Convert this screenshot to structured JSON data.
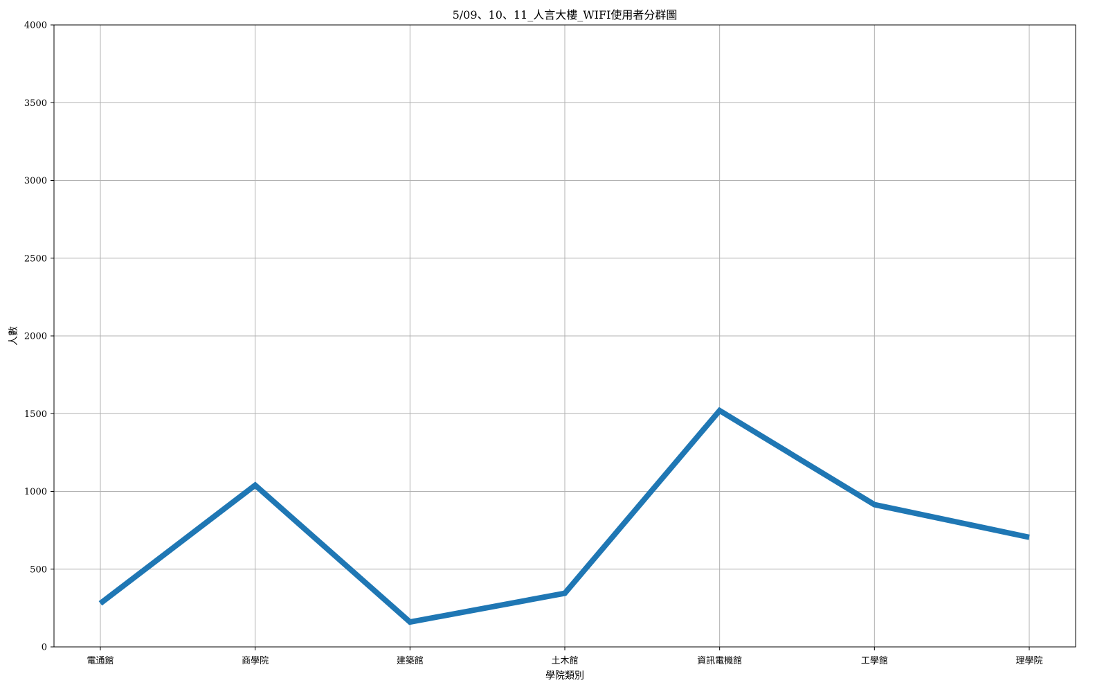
{
  "chart_data": {
    "type": "line",
    "title": "5/09、10、11_人言大樓_WIFI使用者分群圖",
    "xlabel": "學院類別",
    "ylabel": "人數",
    "categories": [
      "電通館",
      "商學院",
      "建築館",
      "土木館",
      "資訊電機館",
      "工學館",
      "理學院"
    ],
    "series": [
      {
        "values": [
          280,
          1040,
          160,
          345,
          1520,
          915,
          705
        ],
        "color": "#1f77b4"
      }
    ],
    "ylim": [
      0,
      4000
    ],
    "yticks": [
      0,
      500,
      1000,
      1500,
      2000,
      2500,
      3000,
      3500,
      4000
    ],
    "grid": true
  }
}
